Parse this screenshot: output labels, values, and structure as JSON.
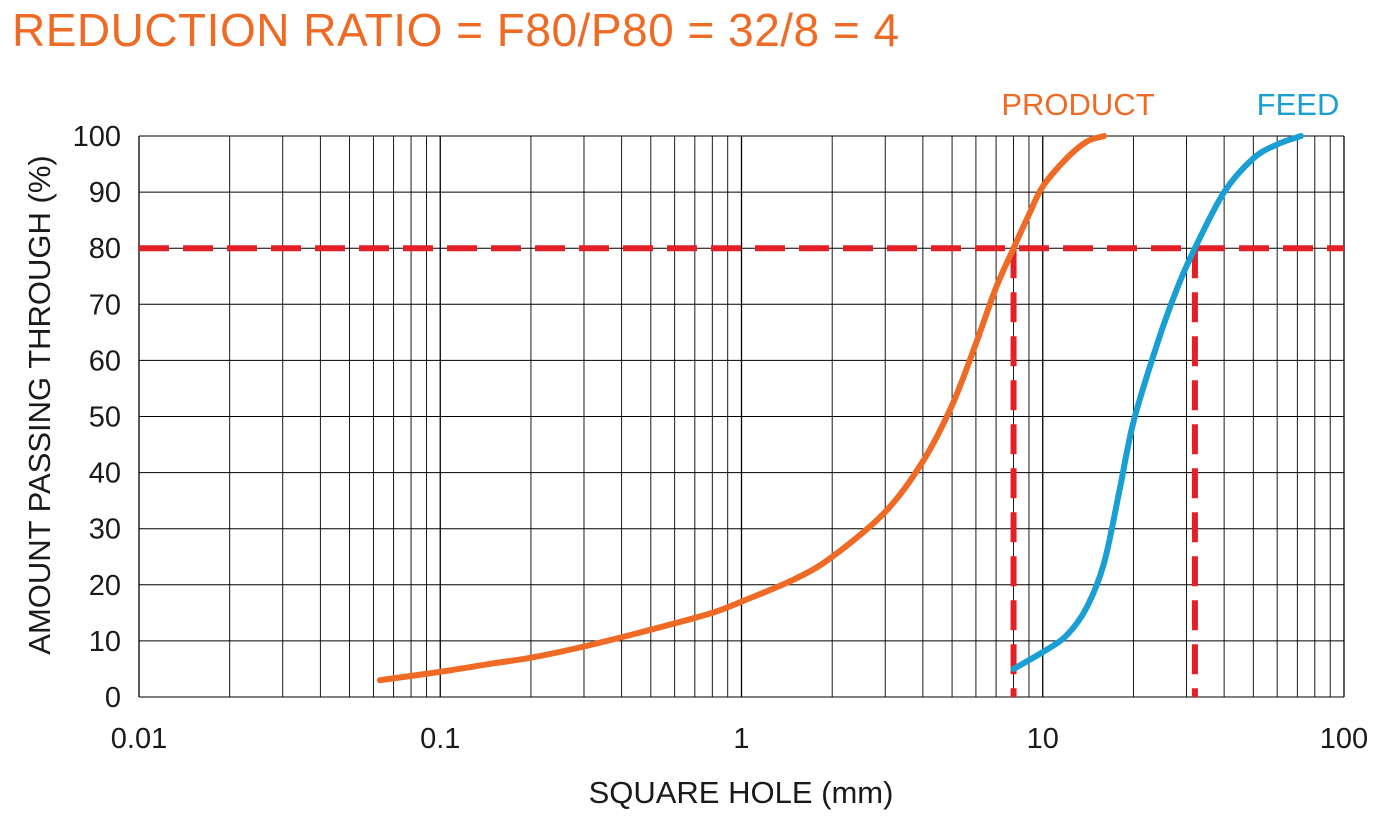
{
  "colors": {
    "title": "#ef6a24",
    "product": "#ef6a24",
    "feed": "#1a9fd4",
    "guide": "#e32027",
    "grid": "#000000"
  },
  "chart_data": {
    "type": "line",
    "title": "REDUCTION RATIO = F80/P80 = 32/8 = 4",
    "xlabel": "SQUARE HOLE (mm)",
    "ylabel": "AMOUNT PASSING THROUGH (%)",
    "x_scale": "log",
    "xlim": [
      0.01,
      100
    ],
    "ylim": [
      0,
      100
    ],
    "grid": true,
    "x_ticks": [
      {
        "value": 0.01,
        "label": "0.01"
      },
      {
        "value": 0.1,
        "label": "0.1"
      },
      {
        "value": 1,
        "label": "1"
      },
      {
        "value": 10,
        "label": "10"
      },
      {
        "value": 100,
        "label": "100"
      }
    ],
    "y_ticks": [
      {
        "value": 0,
        "label": "0"
      },
      {
        "value": 10,
        "label": "10"
      },
      {
        "value": 20,
        "label": "20"
      },
      {
        "value": 30,
        "label": "30"
      },
      {
        "value": 40,
        "label": "40"
      },
      {
        "value": 50,
        "label": "50"
      },
      {
        "value": 60,
        "label": "60"
      },
      {
        "value": 70,
        "label": "70"
      },
      {
        "value": 80,
        "label": "80"
      },
      {
        "value": 90,
        "label": "90"
      },
      {
        "value": 100,
        "label": "100"
      }
    ],
    "series": [
      {
        "name": "PRODUCT",
        "x": [
          0.063,
          0.1,
          0.15,
          0.2,
          0.3,
          0.5,
          0.8,
          1.0,
          1.5,
          2.0,
          3.0,
          4.0,
          5.0,
          6.0,
          7.0,
          8.0,
          9.0,
          10.0,
          12.0,
          14.0,
          16.0
        ],
        "y": [
          3,
          4.5,
          6,
          7,
          9,
          12,
          15,
          17,
          21,
          25,
          33,
          42,
          52,
          63,
          73,
          80,
          86,
          91,
          96,
          99,
          100
        ]
      },
      {
        "name": "FEED",
        "x": [
          8.0,
          10.0,
          12.0,
          14.0,
          16.0,
          18.0,
          20.0,
          24.0,
          28.0,
          32.0,
          40.0,
          50.0,
          60.0,
          72.0
        ],
        "y": [
          5,
          8,
          11,
          16,
          24,
          37,
          49,
          63,
          73,
          80,
          90,
          96,
          98.5,
          100
        ]
      }
    ],
    "reference_lines": [
      {
        "axis": "y",
        "value": 80
      },
      {
        "axis": "x",
        "value": 8,
        "to_y": 80
      },
      {
        "axis": "x",
        "value": 32,
        "to_y": 80
      }
    ]
  }
}
